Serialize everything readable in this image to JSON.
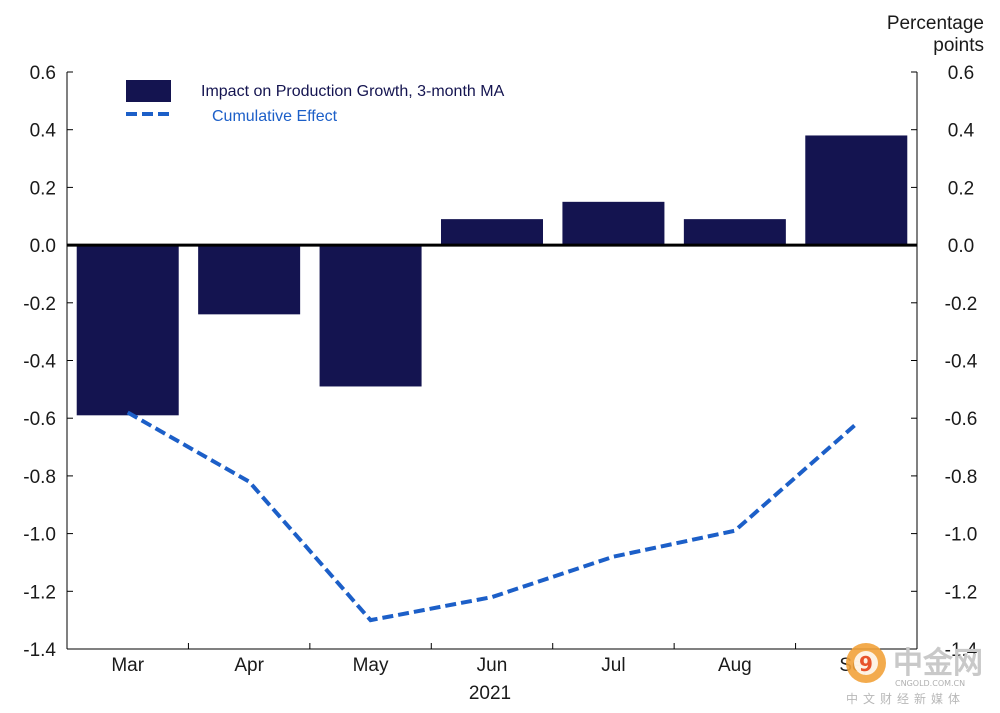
{
  "chart_data": {
    "type": "bar",
    "categories": [
      "Mar",
      "Apr",
      "May",
      "Jun",
      "Jul",
      "Aug",
      "Sep"
    ],
    "x_group_label": "2021",
    "unit_label": [
      "Percentage",
      "points"
    ],
    "ylim": [
      -1.4,
      0.6
    ],
    "yticks": [
      "0.6",
      "0.4",
      "0.2",
      "0.0",
      "-0.2",
      "-0.4",
      "-0.6",
      "-0.8",
      "-1.0",
      "-1.2",
      "-1.4"
    ],
    "series": [
      {
        "name": "Impact on Production Growth, 3-month MA",
        "kind": "bar",
        "color": "#141450",
        "values": [
          -0.59,
          -0.24,
          -0.49,
          0.09,
          0.15,
          0.09,
          0.38
        ]
      },
      {
        "name": "Cumulative Effect",
        "kind": "line-dashed",
        "color": "#1c5fc8",
        "values": [
          -0.58,
          -0.82,
          -1.3,
          -1.22,
          -1.08,
          -0.99,
          -0.62
        ]
      }
    ],
    "legend_position": "top-left",
    "grid": false
  },
  "watermark": {
    "brand": "中金网",
    "domain": "CNGOLD.COM.CN",
    "tagline": "中文财经新媒体",
    "logo_char": "9"
  }
}
